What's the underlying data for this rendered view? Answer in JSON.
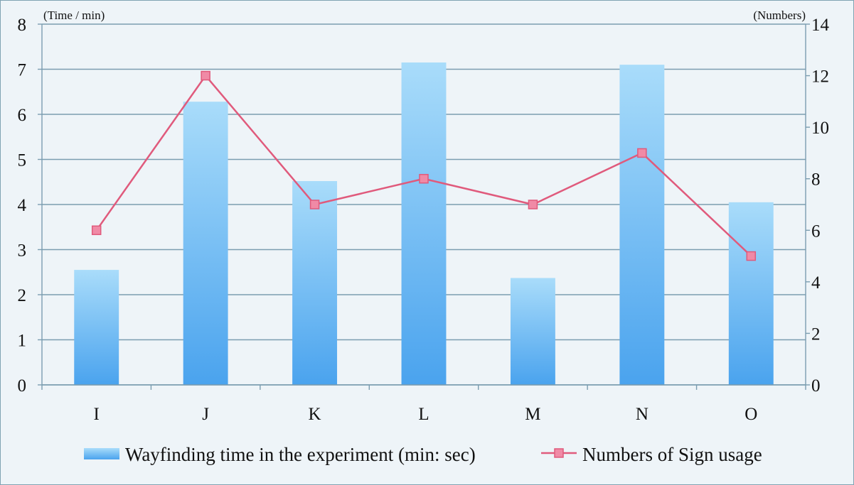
{
  "chart_data": {
    "type": "bar",
    "categories": [
      "I",
      "J",
      "K",
      "L",
      "M",
      "N",
      "O"
    ],
    "y_left": {
      "unit_label": "(Time / min)",
      "ylim": [
        0,
        8
      ],
      "ticks": [
        0,
        1,
        2,
        3,
        4,
        5,
        6,
        7,
        8
      ]
    },
    "y_right": {
      "unit_label": "(Numbers)",
      "ylim": [
        0,
        14
      ],
      "ticks": [
        0,
        2,
        4,
        6,
        8,
        10,
        12,
        14
      ]
    },
    "series": [
      {
        "name": "Wayfinding time in the experiment (min: sec)",
        "type": "bar",
        "axis": "left",
        "values": [
          2.55,
          6.28,
          4.52,
          7.15,
          2.37,
          7.1,
          4.05
        ]
      },
      {
        "name": "Numbers of Sign usage",
        "type": "line",
        "axis": "right",
        "values": [
          6,
          12,
          7,
          8,
          7,
          9,
          5
        ]
      }
    ],
    "grid": true,
    "legend_position": "bottom"
  },
  "colors": {
    "bar_top": "#a9dcfa",
    "bar_bottom": "#4aa3ee",
    "line": "#e05a7c",
    "marker_fill": "#f08aa6",
    "grid": "#7b9db0"
  }
}
